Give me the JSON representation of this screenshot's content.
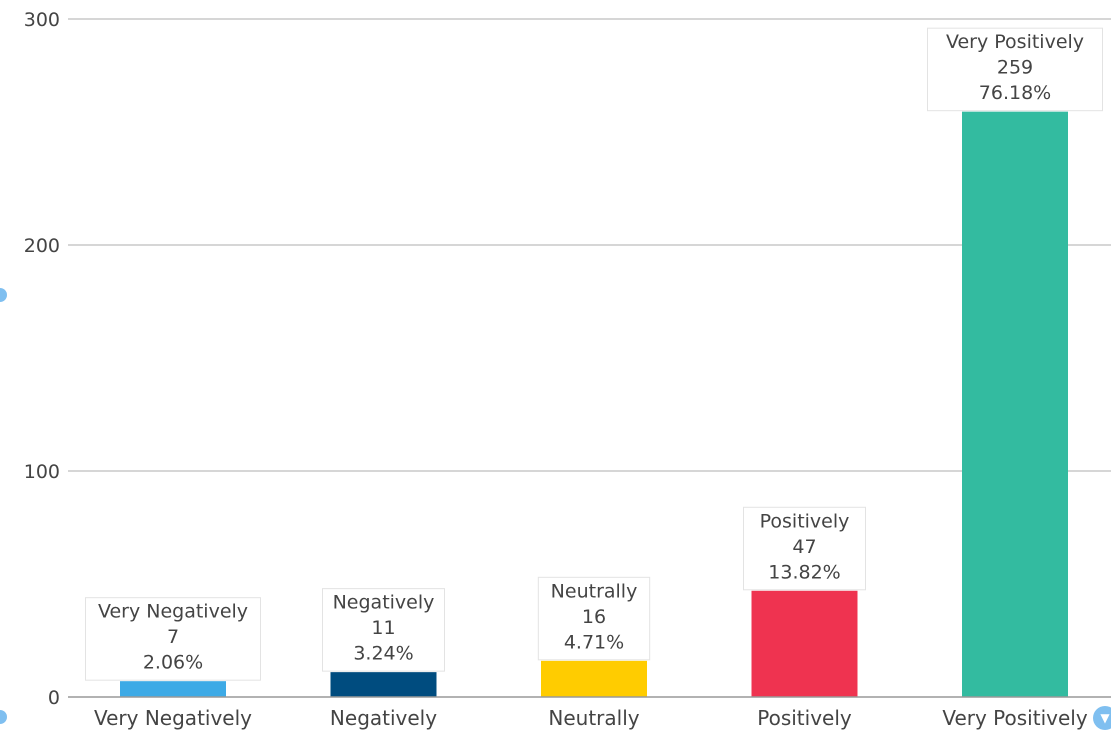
{
  "chart_data": {
    "type": "bar",
    "categories": [
      "Very Negatively",
      "Negatively",
      "Neutrally",
      "Positively",
      "Very Positively"
    ],
    "values": [
      7,
      11,
      16,
      47,
      259
    ],
    "percentages": [
      "2.06%",
      "3.24%",
      "4.71%",
      "13.82%",
      "76.18%"
    ],
    "colors": [
      "#3daae6",
      "#004c7f",
      "#ffcc00",
      "#ef3350",
      "#33bba0"
    ],
    "yticks": [
      0,
      100,
      200,
      300
    ],
    "ylim": [
      0,
      300
    ],
    "grid": true,
    "legend": "none",
    "title": "",
    "xlabel": "",
    "ylabel": ""
  },
  "controls": {
    "filter_icon": "filter-icon",
    "side_marker_icon": "dot-icon"
  }
}
